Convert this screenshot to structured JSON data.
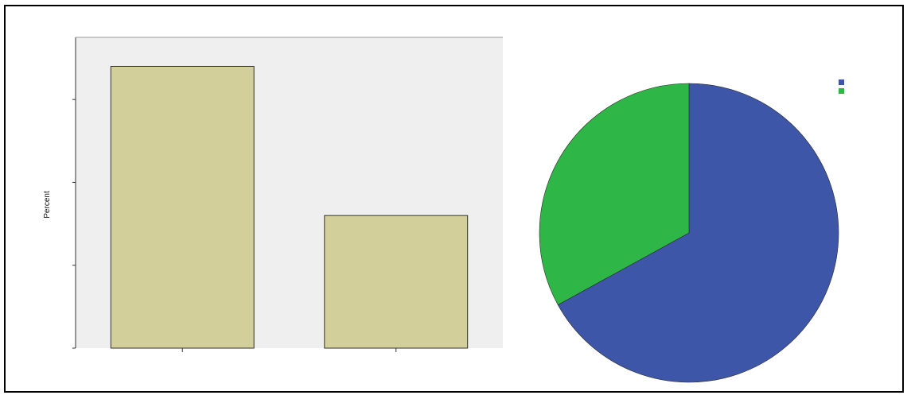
{
  "chart_data": [
    {
      "type": "bar",
      "categories": [
        "",
        ""
      ],
      "values": [
        0.68,
        0.32
      ],
      "xlabel": "",
      "ylabel": "Percent",
      "ylim": [
        0,
        0.75
      ],
      "yticks": [
        0,
        0.2,
        0.4,
        0.6
      ],
      "ytick_labels": [
        "",
        "",
        "",
        ""
      ],
      "grid": false,
      "colors": {
        "bar": "#d3cf9a",
        "plot_background": "#efefef",
        "bar_edge": "#333333"
      }
    },
    {
      "type": "pie",
      "slices": [
        {
          "label": "",
          "value": 67,
          "color": "#3d56a7"
        },
        {
          "label": "",
          "value": 33,
          "color": "#2eb646"
        }
      ],
      "legend": "top-right"
    }
  ]
}
